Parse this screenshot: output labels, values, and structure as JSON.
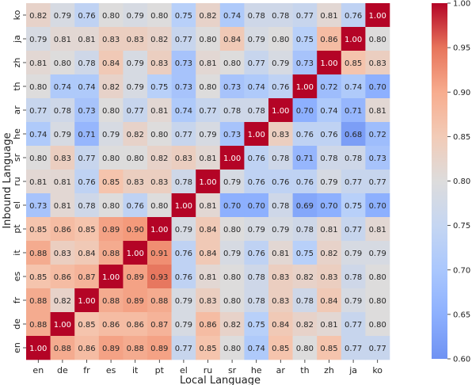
{
  "chart_data": {
    "type": "heatmap",
    "xlabel": "Local Language",
    "ylabel": "Inbound Language",
    "x_categories": [
      "en",
      "de",
      "fr",
      "es",
      "it",
      "pt",
      "el",
      "ru",
      "sr",
      "he",
      "ar",
      "th",
      "zh",
      "ja",
      "ko"
    ],
    "y_categories": [
      "ko",
      "ja",
      "zh",
      "th",
      "ar",
      "he",
      "sr",
      "ru",
      "el",
      "pt",
      "it",
      "es",
      "fr",
      "de",
      "en"
    ],
    "values": [
      [
        "0.82",
        "0.79",
        "0.76",
        "0.80",
        "0.79",
        "0.80",
        "0.75",
        "0.82",
        "0.74",
        "0.78",
        "0.78",
        "0.77",
        "0.81",
        "0.76",
        "1.00"
      ],
      [
        "0.79",
        "0.81",
        "0.81",
        "0.83",
        "0.83",
        "0.82",
        "0.77",
        "0.80",
        "0.84",
        "0.79",
        "0.80",
        "0.75",
        "0.86",
        "1.00",
        "0.80"
      ],
      [
        "0.81",
        "0.80",
        "0.78",
        "0.84",
        "0.79",
        "0.83",
        "0.73",
        "0.81",
        "0.80",
        "0.77",
        "0.79",
        "0.73",
        "1.00",
        "0.85",
        "0.83"
      ],
      [
        "0.80",
        "0.74",
        "0.74",
        "0.82",
        "0.79",
        "0.75",
        "0.73",
        "0.80",
        "0.73",
        "0.74",
        "0.76",
        "1.00",
        "0.72",
        "0.74",
        "0.70"
      ],
      [
        "0.77",
        "0.78",
        "0.73",
        "0.80",
        "0.77",
        "0.81",
        "0.74",
        "0.77",
        "0.78",
        "0.78",
        "1.00",
        "0.70",
        "0.74",
        "0.71",
        "0.81"
      ],
      [
        "0.74",
        "0.79",
        "0.71",
        "0.79",
        "0.82",
        "0.80",
        "0.77",
        "0.79",
        "0.73",
        "1.00",
        "0.83",
        "0.76",
        "0.76",
        "0.68",
        "0.72"
      ],
      [
        "0.80",
        "0.83",
        "0.77",
        "0.80",
        "0.80",
        "0.82",
        "0.83",
        "0.81",
        "1.00",
        "0.76",
        "0.78",
        "0.71",
        "0.78",
        "0.78",
        "0.73"
      ],
      [
        "0.81",
        "0.81",
        "0.76",
        "0.85",
        "0.83",
        "0.83",
        "0.78",
        "1.00",
        "0.79",
        "0.76",
        "0.76",
        "0.76",
        "0.79",
        "0.77",
        "0.77"
      ],
      [
        "0.73",
        "0.81",
        "0.78",
        "0.80",
        "0.76",
        "0.80",
        "1.00",
        "0.81",
        "0.70",
        "0.70",
        "0.78",
        "0.69",
        "0.70",
        "0.75",
        "0.70"
      ],
      [
        "0.85",
        "0.86",
        "0.85",
        "0.89",
        "0.90",
        "1.00",
        "0.79",
        "0.84",
        "0.80",
        "0.79",
        "0.79",
        "0.78",
        "0.81",
        "0.77",
        "0.81"
      ],
      [
        "0.88",
        "0.83",
        "0.84",
        "0.88",
        "1.00",
        "0.91",
        "0.76",
        "0.84",
        "0.79",
        "0.76",
        "0.81",
        "0.75",
        "0.82",
        "0.79",
        "0.79"
      ],
      [
        "0.85",
        "0.86",
        "0.87",
        "1.00",
        "0.89",
        "0.93",
        "0.76",
        "0.81",
        "0.80",
        "0.78",
        "0.83",
        "0.82",
        "0.83",
        "0.78",
        "0.80"
      ],
      [
        "0.88",
        "0.82",
        "1.00",
        "0.88",
        "0.89",
        "0.88",
        "0.79",
        "0.83",
        "0.80",
        "0.78",
        "0.83",
        "0.78",
        "0.84",
        "0.79",
        "0.80"
      ],
      [
        "0.88",
        "1.00",
        "0.85",
        "0.86",
        "0.86",
        "0.87",
        "0.79",
        "0.86",
        "0.82",
        "0.75",
        "0.84",
        "0.82",
        "0.81",
        "0.77",
        "0.80"
      ],
      [
        "1.00",
        "0.88",
        "0.86",
        "0.89",
        "0.88",
        "0.89",
        "0.77",
        "0.85",
        "0.80",
        "0.74",
        "0.85",
        "0.80",
        "0.85",
        "0.77",
        "0.77"
      ]
    ],
    "colorbar": {
      "min": 0.6,
      "max": 1.0,
      "ticks": [
        "0.60",
        "0.65",
        "0.70",
        "0.75",
        "0.80",
        "0.85",
        "0.90",
        "0.95",
        "1.00"
      ],
      "colormap": "coolwarm"
    }
  }
}
